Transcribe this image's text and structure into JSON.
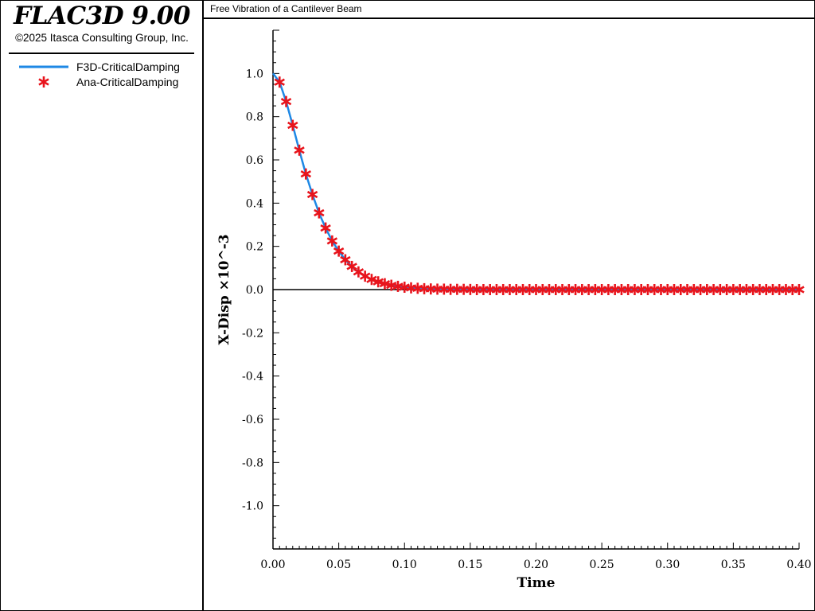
{
  "app": {
    "title": "FLAC3D 9.00",
    "copyright": "©2025 Itasca Consulting Group, Inc."
  },
  "plot": {
    "title": "Free Vibration of a Cantilever Beam"
  },
  "legend": [
    {
      "label": "F3D-CriticalDamping",
      "symbol": "line",
      "color": "#1e88e5"
    },
    {
      "label": "Ana-CriticalDamping",
      "symbol": "asterisk",
      "color": "#e8141c"
    }
  ],
  "chart_data": {
    "type": "line",
    "xlabel": "Time",
    "ylabel": "X-Disp ×10^-3",
    "xlim": [
      0,
      0.4
    ],
    "ylim": [
      -1.2,
      1.2
    ],
    "xticks": [
      "0.00",
      "0.05",
      "0.10",
      "0.15",
      "0.20",
      "0.25",
      "0.30",
      "0.35",
      "0.40"
    ],
    "yticks": [
      "1.0",
      "0.8",
      "0.6",
      "0.4",
      "0.2",
      "0.0",
      "-0.2",
      "-0.4",
      "-0.6",
      "-0.8",
      "-1.0"
    ],
    "zero_line": true,
    "legend_position": "left-panel",
    "series": [
      {
        "name": "F3D-CriticalDamping",
        "style": "line",
        "color": "#1e88e5",
        "x": [
          0,
          0.005,
          0.01,
          0.015,
          0.02,
          0.025,
          0.03,
          0.035,
          0.04,
          0.045,
          0.05,
          0.055,
          0.06,
          0.065,
          0.07,
          0.075,
          0.08,
          0.085,
          0.09,
          0.095,
          0.1,
          0.11,
          0.12,
          0.13,
          0.15,
          0.2,
          0.25,
          0.3,
          0.35,
          0.4
        ],
        "y": [
          1.0,
          0.96,
          0.87,
          0.76,
          0.645,
          0.535,
          0.44,
          0.355,
          0.285,
          0.225,
          0.178,
          0.138,
          0.107,
          0.082,
          0.062,
          0.047,
          0.036,
          0.027,
          0.02,
          0.015,
          0.011,
          0.006,
          0.003,
          0.002,
          0.0005,
          0.0,
          0.0,
          0.0,
          0.0,
          0.0
        ]
      },
      {
        "name": "Ana-CriticalDamping",
        "style": "asterisk",
        "color": "#e8141c",
        "x": [
          0.005,
          0.01,
          0.015,
          0.02,
          0.025,
          0.03,
          0.035,
          0.04,
          0.045,
          0.05,
          0.055,
          0.06,
          0.065,
          0.07,
          0.075,
          0.08,
          0.085,
          0.09,
          0.095,
          0.1,
          0.105,
          0.11,
          0.115,
          0.12,
          0.125,
          0.13,
          0.135,
          0.14,
          0.145,
          0.15,
          0.155,
          0.16,
          0.165,
          0.17,
          0.175,
          0.18,
          0.185,
          0.19,
          0.195,
          0.2,
          0.205,
          0.21,
          0.215,
          0.22,
          0.225,
          0.23,
          0.235,
          0.24,
          0.245,
          0.25,
          0.255,
          0.26,
          0.265,
          0.27,
          0.275,
          0.28,
          0.285,
          0.29,
          0.295,
          0.3,
          0.305,
          0.31,
          0.315,
          0.32,
          0.325,
          0.33,
          0.335,
          0.34,
          0.345,
          0.35,
          0.355,
          0.36,
          0.365,
          0.37,
          0.375,
          0.38,
          0.385,
          0.39,
          0.395,
          0.4
        ],
        "y": [
          0.96,
          0.87,
          0.76,
          0.645,
          0.535,
          0.44,
          0.355,
          0.285,
          0.225,
          0.178,
          0.138,
          0.107,
          0.082,
          0.062,
          0.047,
          0.036,
          0.027,
          0.02,
          0.015,
          0.011,
          0.008,
          0.006,
          0.004,
          0.003,
          0.002,
          0.002,
          0.001,
          0.001,
          0.001,
          0.0005,
          0.0,
          0.0,
          0.0,
          0.0,
          0.0,
          0.0,
          0.0,
          0.0,
          0.0,
          0.0,
          0.0,
          0.0,
          0.0,
          0.0,
          0.0,
          0.0,
          0.0,
          0.0,
          0.0,
          0.0,
          0.0,
          0.0,
          0.0,
          0.0,
          0.0,
          0.0,
          0.0,
          0.0,
          0.0,
          0.0,
          0.0,
          0.0,
          0.0,
          0.0,
          0.0,
          0.0,
          0.0,
          0.0,
          0.0,
          0.0,
          0.0,
          0.0,
          0.0,
          0.0,
          0.0,
          0.0,
          0.0,
          0.0,
          0.0,
          0.0
        ]
      }
    ]
  }
}
